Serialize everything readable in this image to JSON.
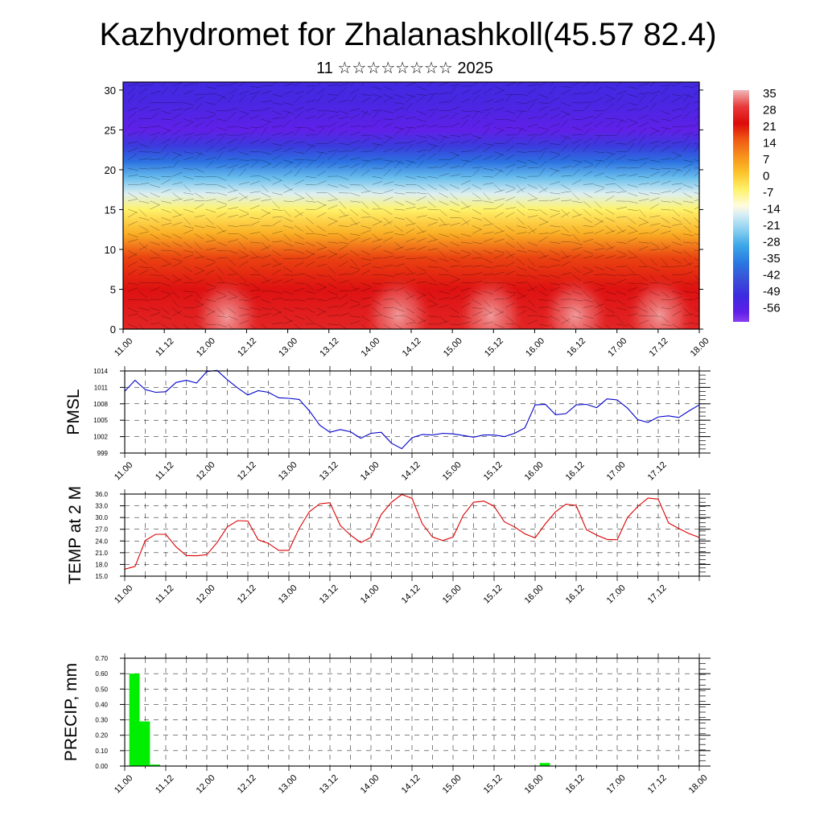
{
  "title": "Kazhydromet for Zhalanashkoll(45.57 82.4)",
  "subtitle": "11 ☆☆☆☆☆☆☆☆ 2025",
  "time_labels": [
    "11.00",
    "11.12",
    "12.00",
    "12.12",
    "13.00",
    "13.12",
    "14.00",
    "14.12",
    "15.00",
    "15.12",
    "16.00",
    "16.12",
    "17.00",
    "17.12",
    "18.00"
  ],
  "chart_data": [
    {
      "type": "heatmap",
      "ylim": [
        0,
        31
      ],
      "yticks": [
        0,
        5,
        10,
        15,
        20,
        25,
        30
      ],
      "colorbar": {
        "labels": [
          "35",
          "28",
          "21",
          "14",
          "7",
          "0",
          "-7",
          "-14",
          "-21",
          "-28",
          "-35",
          "-42",
          "-49",
          "-56"
        ],
        "stops": [
          {
            "v": 38,
            "c": "#f1b8b8"
          },
          {
            "v": 31,
            "c": "#e83a3a"
          },
          {
            "v": 24,
            "c": "#dc0a0a"
          },
          {
            "v": 17,
            "c": "#f05a14"
          },
          {
            "v": 10,
            "c": "#f7921c"
          },
          {
            "v": 3,
            "c": "#fcc42c"
          },
          {
            "v": -4,
            "c": "#fff26a"
          },
          {
            "v": -11,
            "c": "#fffce0"
          },
          {
            "v": -15,
            "c": "#d2ecf6"
          },
          {
            "v": -21,
            "c": "#8cd0f0"
          },
          {
            "v": -28,
            "c": "#3aa6e8"
          },
          {
            "v": -35,
            "c": "#2a78e2"
          },
          {
            "v": -42,
            "c": "#3a50d8"
          },
          {
            "v": -49,
            "c": "#3c2ae0"
          },
          {
            "v": -56,
            "c": "#6020e8"
          },
          {
            "v": -60,
            "c": "#8a40ee"
          }
        ]
      },
      "temperature_profile": [
        {
          "h": 0,
          "t": 28
        },
        {
          "h": 5,
          "t": 25
        },
        {
          "h": 9,
          "t": 19
        },
        {
          "h": 12,
          "t": 6
        },
        {
          "h": 15,
          "t": -4
        },
        {
          "h": 17,
          "t": -14
        },
        {
          "h": 19,
          "t": -24
        },
        {
          "h": 21,
          "t": -36
        },
        {
          "h": 23,
          "t": -46
        },
        {
          "h": 25,
          "t": -56
        },
        {
          "h": 28,
          "t": -52
        },
        {
          "h": 31,
          "t": -50
        }
      ]
    },
    {
      "type": "line",
      "ylabel": "PMSL",
      "ylim": [
        999,
        1014
      ],
      "yticks": [
        "999",
        "1002",
        "1005",
        "1008",
        "1011",
        "1014"
      ],
      "color": "#0000cc",
      "x": [
        0,
        3,
        6,
        9,
        12,
        15,
        18,
        21,
        24,
        27,
        30,
        33,
        36,
        39,
        42,
        45,
        48,
        51,
        54,
        57,
        60,
        63,
        66,
        69,
        72,
        75,
        78,
        81,
        84,
        87,
        90,
        93,
        96,
        99,
        102,
        105,
        108,
        111,
        114,
        117,
        120,
        123,
        126,
        129,
        132,
        135,
        138,
        141,
        144,
        147,
        150,
        153,
        156,
        159,
        162,
        165,
        168
      ],
      "values": [
        1010.3,
        1012.3,
        1010.6,
        1010.1,
        1010.2,
        1011.9,
        1012.3,
        1011.8,
        1013.9,
        1014.1,
        1012.4,
        1010.9,
        1009.6,
        1010.4,
        1010.1,
        1009.1,
        1009.0,
        1008.8,
        1006.7,
        1004.1,
        1002.8,
        1003.3,
        1002.9,
        1001.7,
        1002.6,
        1002.8,
        1000.8,
        999.8,
        1001.8,
        1002.4,
        1002.3,
        1002.6,
        1002.5,
        1002.2,
        1001.9,
        1002.3,
        1002.3,
        1002.0,
        1002.6,
        1003.6,
        1007.8,
        1007.9,
        1006.0,
        1006.2,
        1007.8,
        1007.9,
        1007.3,
        1008.9,
        1008.7,
        1007.2,
        1005.1,
        1004.6,
        1005.6,
        1005.8,
        1005.5,
        1006.7,
        1007.8
      ]
    },
    {
      "type": "line",
      "ylabel": "TEMP at 2 M",
      "ylim": [
        15,
        36
      ],
      "yticks": [
        "15.0",
        "18.0",
        "21.0",
        "24.0",
        "27.0",
        "30.0",
        "33.0",
        "36.0"
      ],
      "color": "#dd0000",
      "x": [
        0,
        3,
        6,
        9,
        12,
        15,
        18,
        21,
        24,
        27,
        30,
        33,
        36,
        39,
        42,
        45,
        48,
        51,
        54,
        57,
        60,
        63,
        66,
        69,
        72,
        75,
        78,
        81,
        84,
        87,
        90,
        93,
        96,
        99,
        102,
        105,
        108,
        111,
        114,
        117,
        120,
        123,
        126,
        129,
        132,
        135,
        138,
        141,
        144,
        147,
        150,
        153,
        156,
        159,
        162,
        165,
        168
      ],
      "values": [
        16.8,
        17.5,
        24.1,
        25.7,
        25.7,
        22.5,
        20.3,
        20.2,
        20.5,
        23.6,
        27.6,
        29.2,
        29.1,
        24.3,
        23.4,
        21.6,
        21.6,
        27.2,
        31.5,
        33.5,
        33.8,
        28.0,
        25.5,
        23.6,
        24.9,
        30.8,
        33.9,
        35.9,
        34.9,
        28.4,
        25.0,
        24.1,
        25.0,
        30.6,
        33.9,
        34.2,
        32.9,
        28.9,
        27.6,
        25.8,
        24.8,
        28.4,
        31.5,
        33.4,
        33.1,
        26.9,
        25.5,
        24.4,
        24.3,
        30.0,
        32.8,
        35.0,
        34.7,
        28.6,
        27.2,
        25.9,
        24.9
      ]
    },
    {
      "type": "bar",
      "ylabel": "PRECIP, mm",
      "ylim": [
        0,
        0.7
      ],
      "yticks": [
        "0.00",
        "0.10",
        "0.20",
        "0.30",
        "0.40",
        "0.50",
        "0.60",
        "0.70"
      ],
      "color": "#00ee00",
      "x": [
        0,
        3,
        6,
        9,
        12,
        15,
        18,
        21,
        24,
        27,
        30,
        33,
        36,
        39,
        42,
        45,
        48,
        51,
        54,
        57,
        60,
        63,
        66,
        69,
        72,
        75,
        78,
        81,
        84,
        87,
        90,
        93,
        96,
        99,
        102,
        105,
        108,
        111,
        114,
        117,
        120,
        123,
        126,
        129,
        132,
        135,
        138,
        141,
        144,
        147,
        150,
        153,
        156,
        159,
        162,
        165
      ],
      "values": [
        0.6,
        0.29,
        0.01,
        0,
        0,
        0,
        0,
        0,
        0,
        0,
        0,
        0,
        0,
        0,
        0,
        0,
        0,
        0,
        0,
        0,
        0,
        0,
        0,
        0,
        0,
        0,
        0,
        0,
        0,
        0,
        0,
        0,
        0,
        0,
        0,
        0,
        0,
        0,
        0,
        0,
        0.02,
        0,
        0,
        0,
        0,
        0,
        0,
        0,
        0,
        0,
        0,
        0,
        0,
        0,
        0,
        0
      ]
    }
  ]
}
